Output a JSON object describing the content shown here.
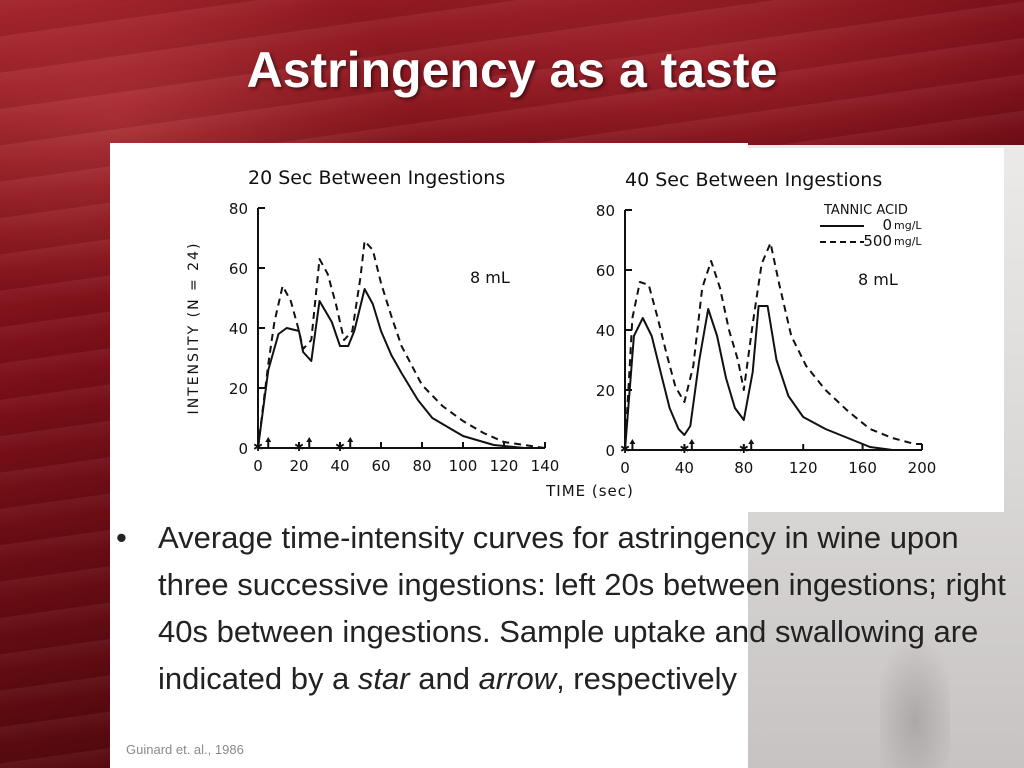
{
  "slide": {
    "title": "Astringency as a taste",
    "bullet_marker": "•",
    "bullet": {
      "part1": "Average time-intensity curves for astringency in wine upon three successive ingestions: left 20s between ingestions; right 40s between ingestions. Sample uptake and swallowing are indicated by a ",
      "em1": "star",
      "part2": " and ",
      "em2": "arrow",
      "part3": ", respectively"
    },
    "citation": "Guinard et. al., 1986"
  },
  "chart_data": [
    {
      "type": "line",
      "title": "20 Sec Between Ingestions",
      "xlabel": "TIME (sec)",
      "ylabel": "INTENSITY (N = 24)",
      "annotation": "8 mL",
      "xlim": [
        0,
        140
      ],
      "ylim": [
        0,
        80
      ],
      "xticks": [
        0,
        20,
        40,
        60,
        80,
        100,
        120,
        140
      ],
      "yticks": [
        0,
        20,
        40,
        60,
        80
      ],
      "series": [
        {
          "style": "solid",
          "x": [
            0,
            5,
            10,
            14,
            20,
            22,
            26,
            30,
            36,
            40,
            44,
            47,
            52,
            56,
            60,
            65,
            70,
            78,
            85,
            100,
            115,
            130,
            140
          ],
          "y": [
            0,
            26,
            38,
            40,
            39,
            32,
            29,
            49,
            42,
            34,
            34,
            39,
            53,
            48,
            39,
            31,
            25,
            16,
            10,
            4,
            1,
            0,
            0
          ]
        },
        {
          "style": "dashed",
          "x": [
            0,
            5,
            8,
            12,
            16,
            20,
            22,
            26,
            30,
            34,
            38,
            42,
            46,
            50,
            52,
            56,
            60,
            65,
            70,
            80,
            90,
            100,
            110,
            120,
            130,
            140
          ],
          "y": [
            0,
            28,
            42,
            54,
            49,
            39,
            33,
            36,
            63,
            58,
            48,
            36,
            39,
            57,
            69,
            66,
            55,
            44,
            34,
            21,
            14,
            9,
            5,
            2,
            1,
            0
          ]
        }
      ],
      "uptake_stars_x": [
        0,
        20,
        40
      ],
      "swallow_arrows_x": [
        5,
        25,
        45
      ]
    },
    {
      "type": "line",
      "title": "40 Sec Between Ingestions",
      "xlabel": "TIME (sec)",
      "annotation": "8 mL",
      "legend": {
        "title": "TANNIC ACID",
        "placement": "top-right",
        "entries": [
          {
            "label": "0",
            "unit": "mg/L",
            "style": "solid"
          },
          {
            "label": "500",
            "unit": "mg/L",
            "style": "dashed"
          }
        ]
      },
      "xlim": [
        0,
        200
      ],
      "ylim": [
        0,
        80
      ],
      "xticks": [
        0,
        40,
        80,
        120,
        160,
        200
      ],
      "yticks": [
        0,
        20,
        40,
        60,
        80
      ],
      "series": [
        {
          "style": "solid",
          "x": [
            0,
            6,
            12,
            18,
            24,
            30,
            36,
            40,
            44,
            50,
            56,
            62,
            68,
            74,
            80,
            86,
            90,
            96,
            102,
            110,
            120,
            135,
            150,
            165,
            180,
            200
          ],
          "y": [
            0,
            38,
            44,
            38,
            26,
            14,
            7,
            5,
            8,
            30,
            47,
            38,
            24,
            14,
            10,
            26,
            48,
            48,
            30,
            18,
            11,
            7,
            4,
            1,
            0,
            0
          ]
        },
        {
          "style": "dashed",
          "x": [
            0,
            5,
            10,
            16,
            22,
            28,
            34,
            40,
            46,
            52,
            58,
            64,
            70,
            76,
            80,
            86,
            92,
            98,
            104,
            112,
            122,
            135,
            150,
            165,
            180,
            195,
            200
          ],
          "y": [
            0,
            44,
            56,
            55,
            44,
            32,
            21,
            16,
            28,
            54,
            63,
            54,
            40,
            30,
            20,
            42,
            62,
            69,
            55,
            38,
            28,
            20,
            13,
            7,
            4,
            2,
            2
          ]
        }
      ],
      "uptake_stars_x": [
        0,
        40,
        80
      ],
      "swallow_arrows_x": [
        5,
        45,
        85
      ]
    }
  ]
}
